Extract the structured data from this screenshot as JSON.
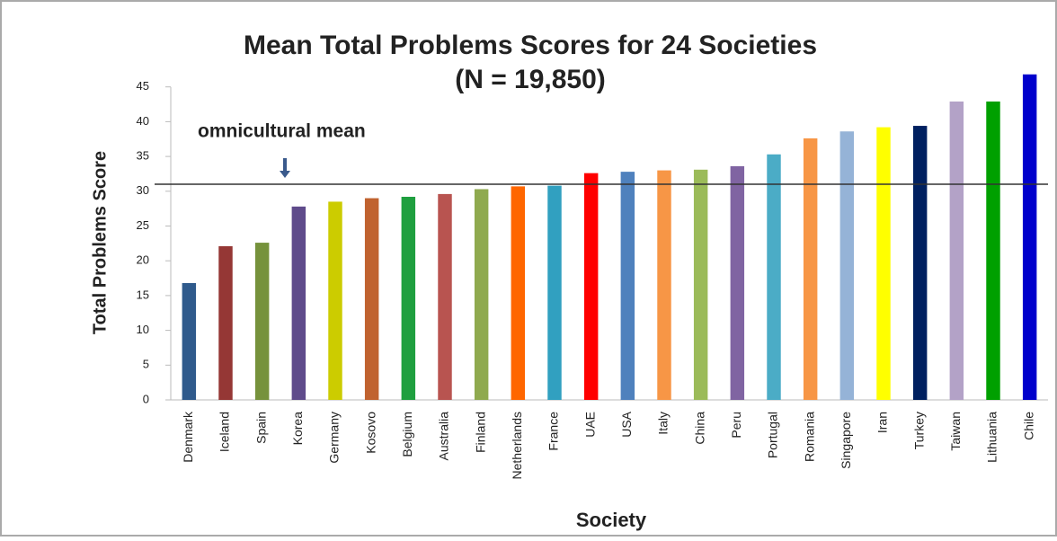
{
  "chart_data": {
    "type": "bar",
    "title": "Mean Total Problems Scores for 24 Societies",
    "subtitle": "(N = 19,850)",
    "y_label": "Total Problems Score",
    "x_label": "Society",
    "annotation": "omnicultural mean",
    "mean_line": 31,
    "categories": [
      "Denmark",
      "Iceland",
      "Spain",
      "Korea",
      "Germany",
      "Kosovo",
      "Belgium",
      "Australia",
      "Finland",
      "Netherlands",
      "France",
      "UAE",
      "USA",
      "Italy",
      "China",
      "Peru",
      "Portugal",
      "Romania",
      "Singapore",
      "Iran",
      "Turkey",
      "Taiwan",
      "Lithuania",
      "Chile"
    ],
    "values": [
      16.8,
      22.1,
      22.6,
      27.8,
      28.5,
      29.0,
      29.2,
      29.6,
      30.3,
      30.7,
      30.8,
      32.6,
      32.8,
      33.0,
      33.1,
      33.6,
      35.3,
      37.6,
      38.6,
      39.2,
      39.4,
      42.9,
      42.9,
      46.8
    ],
    "colors": [
      "#2f5a8c",
      "#953735",
      "#76923c",
      "#5f4b8b",
      "#cccc00",
      "#c0622f",
      "#1f9f3f",
      "#b85450",
      "#8faa4f",
      "#ff6600",
      "#31a0c0",
      "#ff0000",
      "#4f81bd",
      "#f79646",
      "#9bbb59",
      "#8064a2",
      "#4bacc6",
      "#f79646",
      "#95b3d7",
      "#ffff00",
      "#002060",
      "#b3a2c7",
      "#00a000",
      "#0000cc"
    ],
    "ylim": [
      0,
      50
    ],
    "yticks": [
      0,
      5,
      10,
      15,
      20,
      25,
      30,
      35,
      40,
      45
    ],
    "grid": false
  }
}
